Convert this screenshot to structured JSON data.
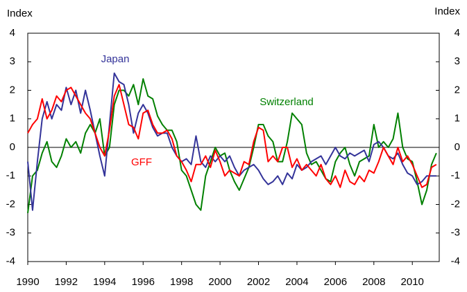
{
  "chart_data": {
    "type": "line",
    "ylabel": "Index",
    "y2label": "Index",
    "xlim": [
      1990,
      2011.4
    ],
    "xticks": [
      1990,
      1992,
      1994,
      1996,
      1998,
      2000,
      2002,
      2004,
      2006,
      2008,
      2010
    ],
    "ylim": [
      -4,
      4
    ],
    "yticks": [
      -4,
      -3,
      -2,
      -1,
      0,
      1,
      2,
      3,
      4
    ],
    "y2lim": [
      -4,
      4
    ],
    "y2ticks": [
      -4,
      -3,
      -2,
      -1,
      0,
      1,
      2,
      3,
      4
    ],
    "x": [
      1990,
      1990.25,
      1990.5,
      1990.75,
      1991,
      1991.25,
      1991.5,
      1991.75,
      1992,
      1992.25,
      1992.5,
      1992.75,
      1993,
      1993.25,
      1993.5,
      1993.75,
      1994,
      1994.25,
      1994.5,
      1994.75,
      1995,
      1995.25,
      1995.5,
      1995.75,
      1996,
      1996.25,
      1996.5,
      1996.75,
      1997,
      1997.25,
      1997.5,
      1997.75,
      1998,
      1998.25,
      1998.5,
      1998.75,
      1999,
      1999.25,
      1999.5,
      1999.75,
      2000,
      2000.25,
      2000.5,
      2000.75,
      2001,
      2001.25,
      2001.5,
      2001.75,
      2002,
      2002.25,
      2002.5,
      2002.75,
      2003,
      2003.25,
      2003.5,
      2003.75,
      2004,
      2004.25,
      2004.5,
      2004.75,
      2005,
      2005.25,
      2005.5,
      2005.75,
      2006,
      2006.25,
      2006.5,
      2006.75,
      2007,
      2007.25,
      2007.5,
      2007.75,
      2008,
      2008.25,
      2008.5,
      2008.75,
      2009,
      2009.25,
      2009.5,
      2009.75,
      2010,
      2010.25,
      2010.5,
      2010.75,
      2011,
      2011.25
    ],
    "series": [
      {
        "name": "Japan",
        "color": "#333399",
        "values": [
          -0.5,
          -2.2,
          -0.5,
          1.0,
          1.6,
          1.0,
          1.5,
          1.3,
          2.1,
          1.5,
          2.0,
          1.2,
          2.0,
          1.3,
          0.5,
          -0.3,
          -1.0,
          0.8,
          2.6,
          2.3,
          2.2,
          1.5,
          0.5,
          1.2,
          1.5,
          1.2,
          0.7,
          0.4,
          0.5,
          0.5,
          0.0,
          -0.3,
          -0.5,
          -0.4,
          -0.6,
          0.4,
          -0.5,
          -0.7,
          -0.3,
          -0.5,
          -0.3,
          -0.5,
          -0.3,
          -0.7,
          -1.0,
          -0.8,
          -0.7,
          -0.6,
          -0.8,
          -1.1,
          -1.3,
          -1.2,
          -1.0,
          -1.3,
          -0.9,
          -1.1,
          -0.6,
          -0.8,
          -0.7,
          -0.5,
          -0.4,
          -0.3,
          -0.6,
          -0.3,
          0.0,
          -0.3,
          -0.4,
          -0.2,
          -0.3,
          -0.2,
          -0.1,
          -0.5,
          0.1,
          0.2,
          0.0,
          -0.3,
          -0.4,
          -0.2,
          -0.6,
          -0.9,
          -1.0,
          -1.3,
          -1.2,
          -1.0,
          -1.0,
          -1.0
        ]
      },
      {
        "name": "Switzerland",
        "color": "#008000",
        "values": [
          -2.3,
          -1.0,
          -0.8,
          -0.2,
          0.2,
          -0.5,
          -0.7,
          -0.3,
          0.3,
          0.0,
          0.2,
          -0.2,
          0.5,
          0.8,
          0.5,
          1.0,
          -0.3,
          0.0,
          1.5,
          2.0,
          2.0,
          1.8,
          2.2,
          1.5,
          2.4,
          1.8,
          1.7,
          1.1,
          0.8,
          0.6,
          0.6,
          0.2,
          -0.8,
          -1.0,
          -1.5,
          -2.0,
          -2.2,
          -1.0,
          -0.5,
          0.0,
          -0.3,
          -0.2,
          -0.8,
          -1.2,
          -1.5,
          -1.1,
          -0.7,
          0.0,
          0.8,
          0.8,
          0.4,
          0.2,
          -0.5,
          -0.5,
          0.2,
          1.2,
          1.0,
          0.8,
          -0.2,
          -0.6,
          -0.5,
          -0.8,
          -1.1,
          -1.2,
          -0.5,
          -0.2,
          0.0,
          -0.6,
          -1.0,
          -0.5,
          -0.4,
          -0.3,
          0.8,
          0.0,
          0.2,
          0.0,
          0.3,
          1.2,
          0.0,
          -0.4,
          -0.5,
          -1.2,
          -2.0,
          -1.5,
          -0.6,
          -0.2
        ]
      },
      {
        "name": "GFF",
        "color": "#ff0000",
        "values": [
          0.5,
          0.8,
          1.0,
          1.7,
          1.0,
          1.3,
          1.8,
          1.6,
          2.0,
          2.1,
          1.8,
          1.5,
          1.2,
          1.0,
          0.5,
          0.0,
          -0.3,
          0.6,
          1.8,
          2.2,
          1.5,
          0.8,
          0.7,
          0.3,
          1.2,
          1.3,
          0.8,
          0.5,
          0.5,
          0.6,
          0.3,
          -0.3,
          -0.5,
          -0.8,
          -1.2,
          -0.6,
          -0.6,
          -0.3,
          -0.7,
          -0.1,
          -0.5,
          -1.0,
          -0.8,
          -0.9,
          -1.0,
          -0.5,
          -0.6,
          0.2,
          0.7,
          0.6,
          -0.5,
          -0.3,
          -0.5,
          0.0,
          0.0,
          -0.7,
          -0.4,
          -0.8,
          -0.6,
          -0.8,
          -1.0,
          -0.6,
          -1.1,
          -1.3,
          -1.0,
          -1.4,
          -0.8,
          -1.2,
          -1.3,
          -1.0,
          -1.2,
          -0.8,
          -0.9,
          -0.5,
          0.0,
          -0.3,
          -0.6,
          0.0,
          -0.5,
          -0.3,
          -0.6,
          -1.0,
          -1.4,
          -1.3,
          -0.7,
          -0.6
        ]
      }
    ]
  }
}
